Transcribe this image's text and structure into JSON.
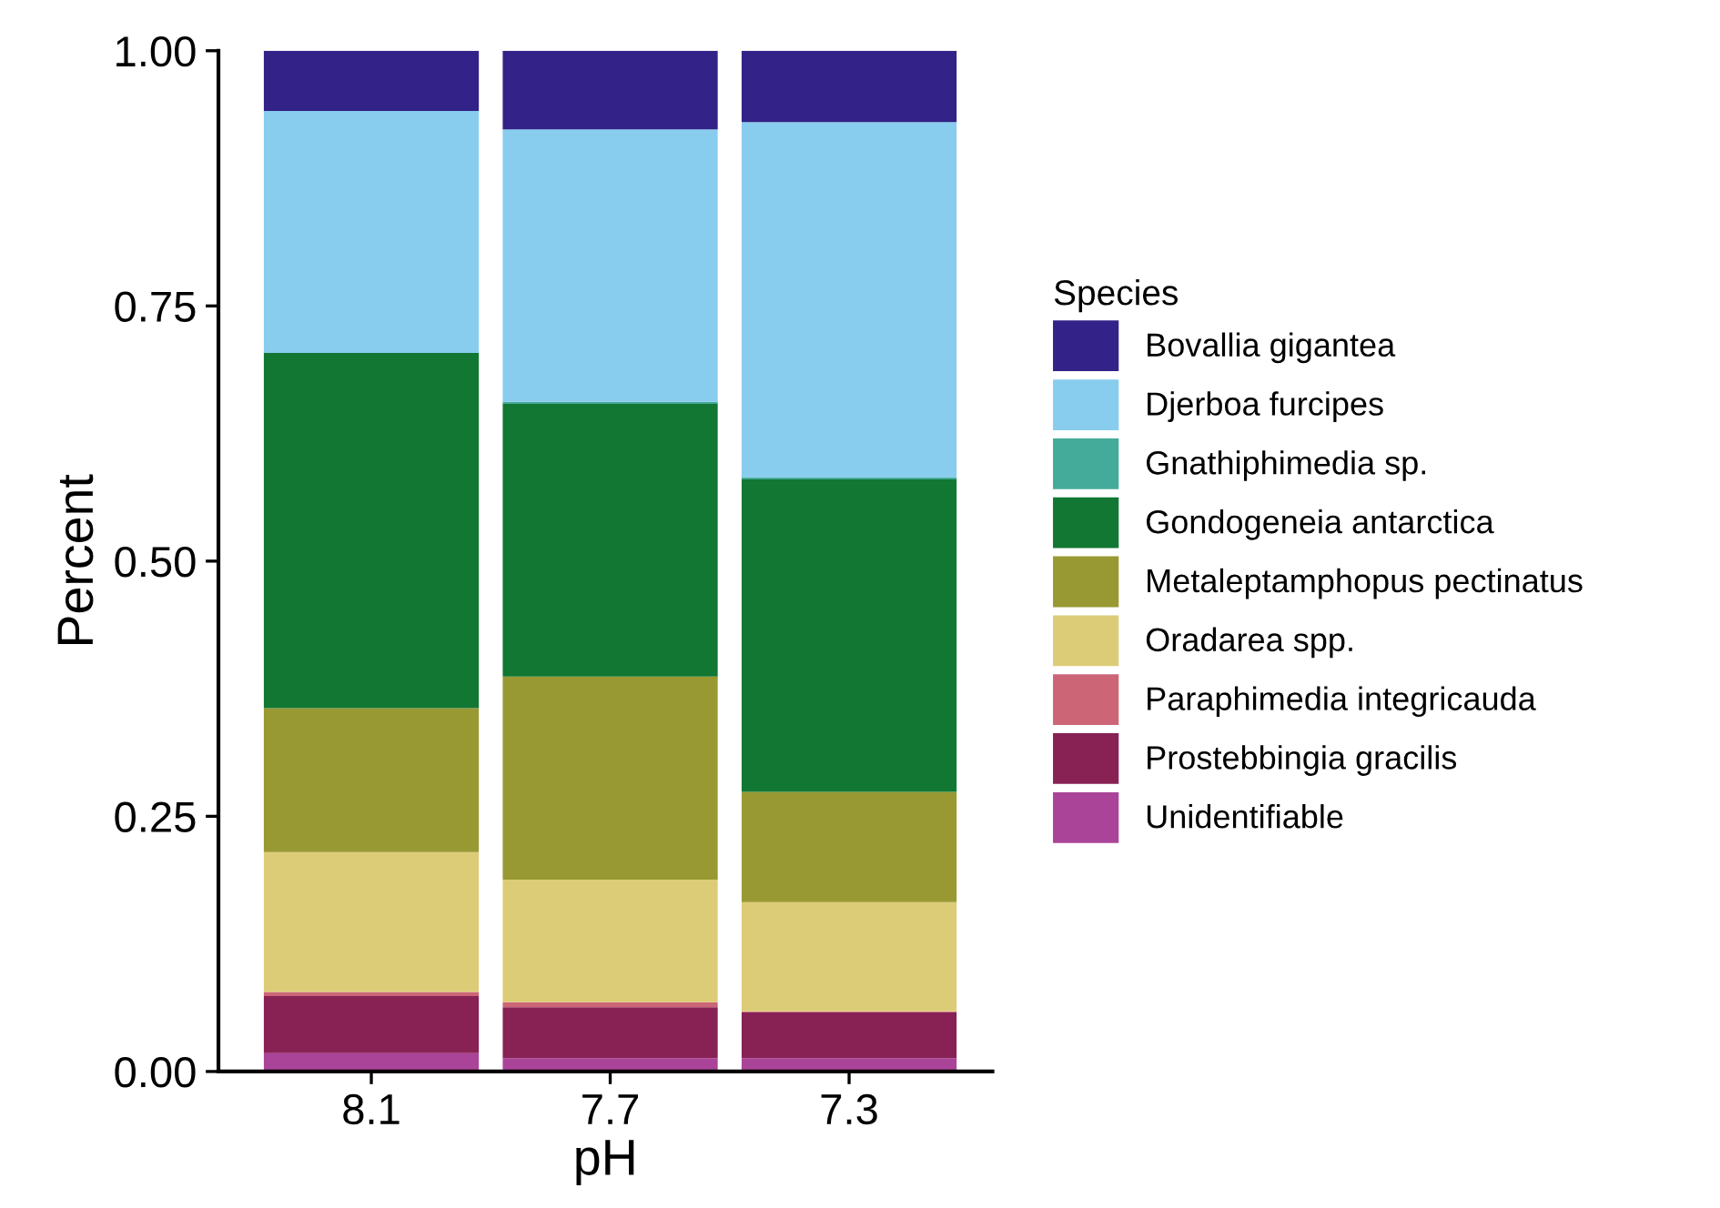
{
  "chart_data": {
    "type": "bar",
    "stacked": true,
    "xlabel": "pH",
    "ylabel": "Percent",
    "legend_title": "Species",
    "legend": "right",
    "categories": [
      "8.1",
      "7.7",
      "7.3"
    ],
    "ylim": [
      0,
      1
    ],
    "yticks": [
      {
        "value": 0,
        "label": "0.00"
      },
      {
        "value": 0.25,
        "label": "0.25"
      },
      {
        "value": 0.5,
        "label": "0.50"
      },
      {
        "value": 0.75,
        "label": "0.75"
      },
      {
        "value": 1,
        "label": "1.00"
      }
    ],
    "grid": false,
    "series": [
      {
        "name": "Unidentifiable",
        "color": "#aa4499",
        "values": [
          0.018,
          0.013,
          0.013
        ]
      },
      {
        "name": "Prostebbingia gracilis",
        "color": "#882255",
        "values": [
          0.056,
          0.05,
          0.045
        ]
      },
      {
        "name": "Paraphimedia integricauda",
        "color": "#cc6677",
        "values": [
          0.004,
          0.005,
          0.001
        ]
      },
      {
        "name": "Oradarea spp.",
        "color": "#ddcc77",
        "values": [
          0.137,
          0.12,
          0.107
        ]
      },
      {
        "name": "Metaleptamphopus pectinatus",
        "color": "#999933",
        "values": [
          0.141,
          0.199,
          0.108
        ]
      },
      {
        "name": "Gondogeneia antarctica",
        "color": "#117733",
        "values": [
          0.348,
          0.267,
          0.306
        ]
      },
      {
        "name": "Gnathiphimedia sp.",
        "color": "#44aa99",
        "values": [
          0,
          0.002,
          0.002
        ]
      },
      {
        "name": "Djerboa furcipes",
        "color": "#88ccee",
        "values": [
          0.237,
          0.267,
          0.348
        ]
      },
      {
        "name": "Bovallia gigantea",
        "color": "#332288",
        "values": [
          0.059,
          0.077,
          0.07
        ]
      }
    ]
  }
}
